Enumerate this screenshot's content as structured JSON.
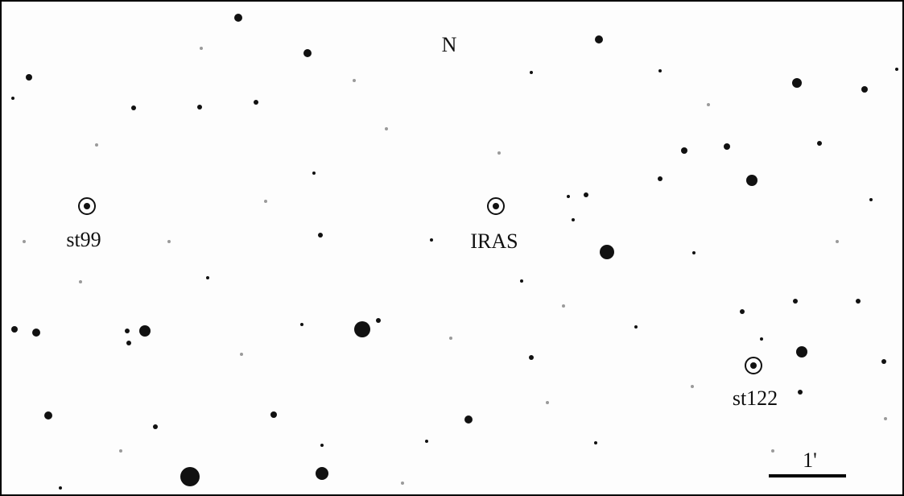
{
  "north_label": "N",
  "marked_stars": [
    {
      "label": "st99"
    },
    {
      "label": "IRAS"
    },
    {
      "label": "st122"
    }
  ],
  "scale_bar_label": "1'"
}
